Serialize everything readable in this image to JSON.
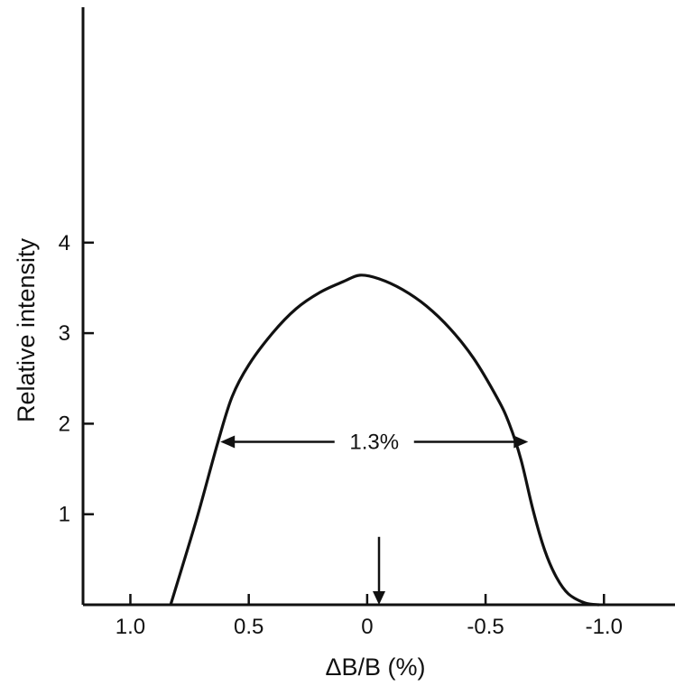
{
  "chart_data": {
    "type": "line",
    "title": "",
    "xlabel": "ΔB/B (%)",
    "ylabel": "Relative intensity",
    "x_reversed": true,
    "xlim": [
      1.2,
      -1.3
    ],
    "ylim": [
      0,
      6.6
    ],
    "x_ticks": [
      {
        "value": 1.0,
        "label": "1.0"
      },
      {
        "value": 0.5,
        "label": "0.5"
      },
      {
        "value": 0.0,
        "label": "0"
      },
      {
        "value": -0.5,
        "label": "-0.5"
      },
      {
        "value": -1.0,
        "label": "-1.0"
      }
    ],
    "y_ticks": [
      {
        "value": 1,
        "label": "1"
      },
      {
        "value": 2,
        "label": "2"
      },
      {
        "value": 3,
        "label": "3"
      },
      {
        "value": 4,
        "label": "4"
      }
    ],
    "series": [
      {
        "x": [
          0.83,
          0.72,
          0.63,
          0.57,
          0.5,
          0.4,
          0.3,
          0.2,
          0.1,
          0.03,
          -0.05,
          -0.15,
          -0.25,
          -0.35,
          -0.45,
          -0.55,
          -0.6,
          -0.65,
          -0.7,
          -0.75,
          -0.8,
          -0.85,
          -0.92,
          -0.98
        ],
        "y": [
          0.0,
          0.95,
          1.8,
          2.3,
          2.65,
          3.0,
          3.27,
          3.45,
          3.57,
          3.64,
          3.6,
          3.48,
          3.3,
          3.05,
          2.72,
          2.28,
          2.0,
          1.6,
          1.05,
          0.6,
          0.3,
          0.12,
          0.02,
          0.0
        ]
      }
    ],
    "annotations": [
      {
        "type": "double-arrow",
        "text": "1.3%",
        "x_from": 0.62,
        "x_to": -0.68,
        "y": 1.8
      },
      {
        "type": "arrow-down",
        "x": -0.05,
        "y_from": 0.75,
        "y_to": 0.0
      }
    ],
    "grid": false,
    "legend": "none"
  }
}
